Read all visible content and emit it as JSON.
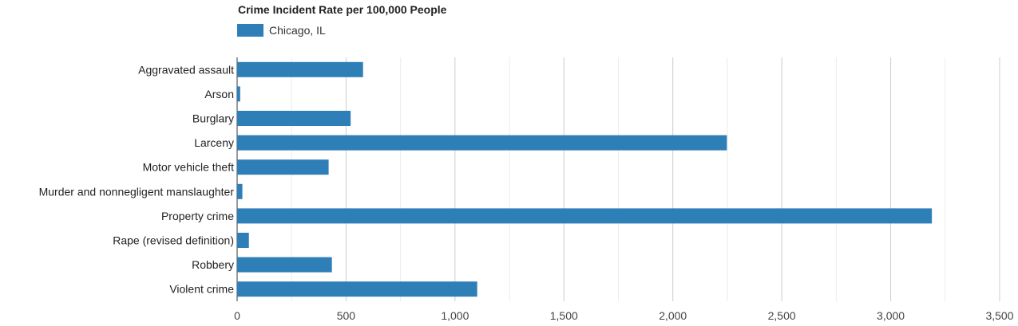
{
  "chart_data": {
    "type": "bar",
    "orientation": "horizontal",
    "title": "Crime Incident Rate per 100,000 People",
    "categories": [
      "Aggravated assault",
      "Arson",
      "Burglary",
      "Larceny",
      "Motor vehicle theft",
      "Murder and nonnegligent manslaughter",
      "Property crime",
      "Rape (revised definition)",
      "Robbery",
      "Violent crime"
    ],
    "series": [
      {
        "name": "Chicago, IL",
        "color": "#2e7fb8",
        "values": [
          578,
          14,
          521,
          2248,
          420,
          24,
          3189,
          54,
          435,
          1102
        ]
      }
    ],
    "xlim": [
      0,
      3500
    ],
    "xticks": [
      0,
      500,
      1000,
      1500,
      2000,
      2500,
      3000,
      3500
    ],
    "xtick_labels": [
      "0",
      "500",
      "1,000",
      "1,500",
      "2,000",
      "2,500",
      "3,000",
      "3,500"
    ],
    "grid": true,
    "legend_position": "top-left"
  }
}
